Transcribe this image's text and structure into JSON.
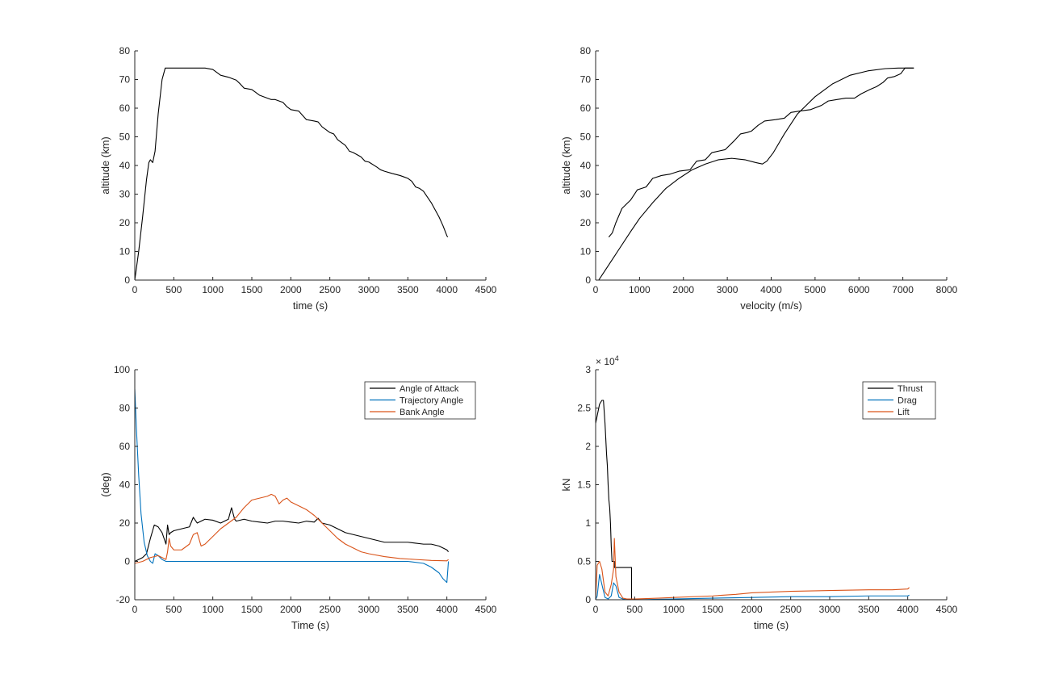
{
  "chart_data": [
    {
      "type": "line",
      "title": "",
      "xlabel": "time (s)",
      "ylabel": "altitude (km)",
      "xlim": [
        0,
        4500
      ],
      "ylim": [
        0,
        80
      ],
      "xticks": [
        0,
        500,
        1000,
        1500,
        2000,
        2500,
        3000,
        3500,
        4000,
        4500
      ],
      "yticks": [
        0,
        10,
        20,
        30,
        40,
        50,
        60,
        70,
        80
      ],
      "grid": false,
      "series": [
        {
          "color": "#000000",
          "x": [
            0,
            50,
            100,
            150,
            180,
            200,
            230,
            260,
            300,
            350,
            390,
            420,
            500,
            600,
            700,
            800,
            900,
            1000,
            1100,
            1200,
            1300,
            1350,
            1400,
            1500,
            1550,
            1600,
            1700,
            1750,
            1800,
            1900,
            1950,
            2000,
            2100,
            2150,
            2200,
            2300,
            2350,
            2400,
            2500,
            2550,
            2600,
            2700,
            2750,
            2800,
            2900,
            2950,
            3000,
            3100,
            3150,
            3200,
            3300,
            3400,
            3450,
            3500,
            3550,
            3600,
            3650,
            3700,
            3750,
            3800,
            3850,
            3900,
            3950,
            4000,
            4010
          ],
          "y": [
            0,
            10,
            22,
            35,
            41,
            42,
            41,
            45,
            58,
            70,
            74,
            74,
            74,
            74,
            74,
            74,
            74,
            73.5,
            71.5,
            70.8,
            69.8,
            68.5,
            67,
            66.5,
            65.5,
            64.5,
            63.5,
            63,
            63,
            62,
            60.5,
            59.5,
            59,
            57.5,
            56,
            55.5,
            55.2,
            53.5,
            51.5,
            51,
            49,
            47,
            45,
            44.5,
            43,
            41.5,
            41.2,
            39.5,
            38.5,
            38,
            37.2,
            36.5,
            36,
            35.5,
            34.5,
            32.5,
            32,
            31,
            29,
            27,
            24.5,
            22,
            19,
            15.5,
            15
          ]
        }
      ]
    },
    {
      "type": "line",
      "title": "",
      "xlabel": "velocity (m/s)",
      "ylabel": "altitude (km)",
      "xlim": [
        0,
        8000
      ],
      "ylim": [
        0,
        80
      ],
      "xticks": [
        0,
        1000,
        2000,
        3000,
        4000,
        5000,
        6000,
        7000,
        8000
      ],
      "yticks": [
        0,
        10,
        20,
        30,
        40,
        50,
        60,
        70,
        80
      ],
      "grid": false,
      "series": [
        {
          "color": "#000000",
          "x": [
            70,
            200,
            500,
            800,
            1000,
            1300,
            1600,
            1900,
            2200,
            2500,
            2800,
            3100,
            3400,
            3650,
            3800,
            3900,
            4050,
            4300,
            4600,
            5000,
            5400,
            5800,
            6200,
            6600,
            6900,
            7100,
            7250
          ],
          "y": [
            0,
            3,
            10,
            17,
            21.5,
            27,
            32,
            35.5,
            38.5,
            40.5,
            42,
            42.5,
            42,
            41,
            40.5,
            41.5,
            44.5,
            51,
            58,
            64,
            68.5,
            71.5,
            73,
            73.8,
            74,
            74,
            74
          ]
        },
        {
          "color": "#000000",
          "x": [
            300,
            380,
            460,
            600,
            800,
            950,
            1050,
            1150,
            1300,
            1500,
            1700,
            1900,
            2150,
            2300,
            2500,
            2650,
            2800,
            2950,
            3150,
            3300,
            3450,
            3550,
            3700,
            3850,
            4100,
            4300,
            4450,
            4650,
            4900,
            5150,
            5300,
            5500,
            5700,
            5900,
            6050,
            6250,
            6400,
            6550,
            6650,
            6800,
            6950,
            7050,
            7150,
            7250
          ],
          "y": [
            15,
            16.5,
            20,
            25,
            28,
            31.5,
            32,
            32.5,
            35.5,
            36.5,
            37,
            38,
            38.5,
            41.5,
            42,
            44.5,
            45,
            45.5,
            48.5,
            51,
            51.5,
            52,
            54,
            55.5,
            56,
            56.5,
            58.5,
            59,
            59.5,
            61,
            62.5,
            63,
            63.5,
            63.5,
            65,
            66.5,
            67.5,
            69,
            70.5,
            71,
            72,
            74,
            74,
            74
          ]
        }
      ]
    },
    {
      "type": "line",
      "title": "",
      "xlabel": "Time (s)",
      "ylabel": "(deg)",
      "xlim": [
        0,
        4500
      ],
      "ylim": [
        -20,
        100
      ],
      "xticks": [
        0,
        500,
        1000,
        1500,
        2000,
        2500,
        3000,
        3500,
        4000,
        4500
      ],
      "yticks": [
        -20,
        0,
        20,
        40,
        60,
        80,
        100
      ],
      "grid": false,
      "legend": "top-right",
      "series": [
        {
          "name": "Angle of Attack",
          "color": "#000000",
          "x": [
            0,
            50,
            100,
            150,
            200,
            250,
            300,
            350,
            400,
            420,
            440,
            460,
            500,
            600,
            700,
            750,
            800,
            900,
            1000,
            1100,
            1200,
            1240,
            1280,
            1300,
            1400,
            1500,
            1600,
            1700,
            1800,
            1900,
            2000,
            2100,
            2200,
            2300,
            2350,
            2400,
            2500,
            2600,
            2700,
            2800,
            2900,
            3000,
            3100,
            3200,
            3300,
            3400,
            3500,
            3600,
            3700,
            3800,
            3900,
            4000,
            4020
          ],
          "y": [
            0,
            1,
            2,
            4,
            12,
            19,
            18,
            15,
            9,
            19,
            14,
            15,
            16,
            17,
            18,
            23,
            20,
            22,
            21.5,
            20,
            22,
            28,
            22,
            21,
            22,
            21,
            20.5,
            20,
            21,
            21,
            20.5,
            20,
            21,
            20.5,
            22.5,
            20,
            19,
            17,
            15,
            14,
            13,
            12,
            11,
            10,
            10,
            10,
            10,
            9.5,
            9,
            9,
            8,
            6,
            5
          ]
        },
        {
          "name": "Trajectory Angle",
          "color": "#0072BD",
          "x": [
            0,
            20,
            50,
            80,
            120,
            160,
            200,
            230,
            260,
            300,
            350,
            400,
            500,
            800,
            1000,
            1500,
            2000,
            2500,
            3000,
            3500,
            3700,
            3800,
            3900,
            3950,
            4000,
            4020
          ],
          "y": [
            90,
            70,
            45,
            25,
            10,
            3,
            0,
            -1,
            4,
            3,
            1,
            0,
            0,
            0,
            0,
            0,
            0,
            0,
            0,
            0,
            -1,
            -3,
            -6,
            -9,
            -11,
            0
          ]
        },
        {
          "name": "Bank Angle",
          "color": "#D95319",
          "x": [
            0,
            100,
            200,
            300,
            400,
            420,
            440,
            460,
            500,
            600,
            700,
            750,
            800,
            850,
            900,
            1000,
            1100,
            1200,
            1300,
            1400,
            1500,
            1600,
            1700,
            1750,
            1800,
            1850,
            1900,
            1950,
            2000,
            2100,
            2200,
            2300,
            2400,
            2500,
            2600,
            2700,
            2800,
            2900,
            3000,
            3200,
            3400,
            3600,
            3800,
            4000,
            4020
          ],
          "y": [
            -1,
            0,
            2,
            3,
            1,
            5,
            12,
            8,
            6,
            6,
            9,
            14,
            15,
            8,
            9,
            13,
            17,
            20,
            23,
            28,
            32,
            33,
            34,
            35,
            34,
            30,
            32,
            33,
            31,
            29,
            27,
            24,
            20,
            16,
            12,
            9,
            7,
            5,
            4,
            2.5,
            1.5,
            1,
            0.5,
            0.3,
            1
          ]
        }
      ]
    },
    {
      "type": "line",
      "title": "",
      "xlabel": "time (s)",
      "ylabel": "kN",
      "exponent_label": "× 10^4",
      "xlim": [
        0,
        4500
      ],
      "ylim": [
        0,
        3
      ],
      "xticks": [
        0,
        500,
        1000,
        1500,
        2000,
        2500,
        3000,
        3500,
        4000,
        4500
      ],
      "yticks": [
        0,
        0.5,
        1,
        1.5,
        2,
        2.5,
        3
      ],
      "grid": false,
      "legend": "top-right",
      "series": [
        {
          "name": "Thrust",
          "color": "#000000",
          "x": [
            0,
            20,
            50,
            80,
            100,
            120,
            130,
            140,
            150,
            160,
            170,
            180,
            190,
            200,
            210,
            220,
            230,
            240,
            240.5,
            300,
            300.5,
            460,
            460.5,
            4020
          ],
          "y": [
            2.3,
            2.4,
            2.55,
            2.6,
            2.6,
            2.3,
            2.1,
            1.9,
            1.75,
            1.5,
            1.3,
            1.2,
            1.0,
            0.7,
            0.5,
            0.5,
            0.5,
            0.5,
            0.42,
            0.42,
            0.42,
            0.42,
            0,
            0
          ]
        },
        {
          "name": "Drag",
          "color": "#0072BD",
          "x": [
            0,
            20,
            50,
            80,
            120,
            160,
            200,
            230,
            260,
            300,
            350,
            400,
            500,
            1000,
            1500,
            2000,
            2500,
            3000,
            3500,
            4000,
            4020
          ],
          "y": [
            0,
            0.05,
            0.33,
            0.2,
            0.03,
            0.01,
            0.05,
            0.22,
            0.18,
            0.03,
            0.01,
            0,
            0,
            0.01,
            0.02,
            0.03,
            0.04,
            0.04,
            0.05,
            0.05,
            0.06
          ]
        },
        {
          "name": "Lift",
          "color": "#D95319",
          "x": [
            0,
            20,
            50,
            80,
            120,
            160,
            200,
            230,
            240,
            260,
            300,
            350,
            400,
            500,
            800,
            1000,
            1500,
            1800,
            2000,
            2500,
            3000,
            3500,
            3800,
            4000,
            4020
          ],
          "y": [
            0,
            0.45,
            0.5,
            0.4,
            0.1,
            0.05,
            0.2,
            0.4,
            0.8,
            0.3,
            0.1,
            0.02,
            0.01,
            0.01,
            0.02,
            0.03,
            0.05,
            0.07,
            0.09,
            0.11,
            0.12,
            0.13,
            0.13,
            0.14,
            0.16
          ]
        }
      ]
    }
  ]
}
